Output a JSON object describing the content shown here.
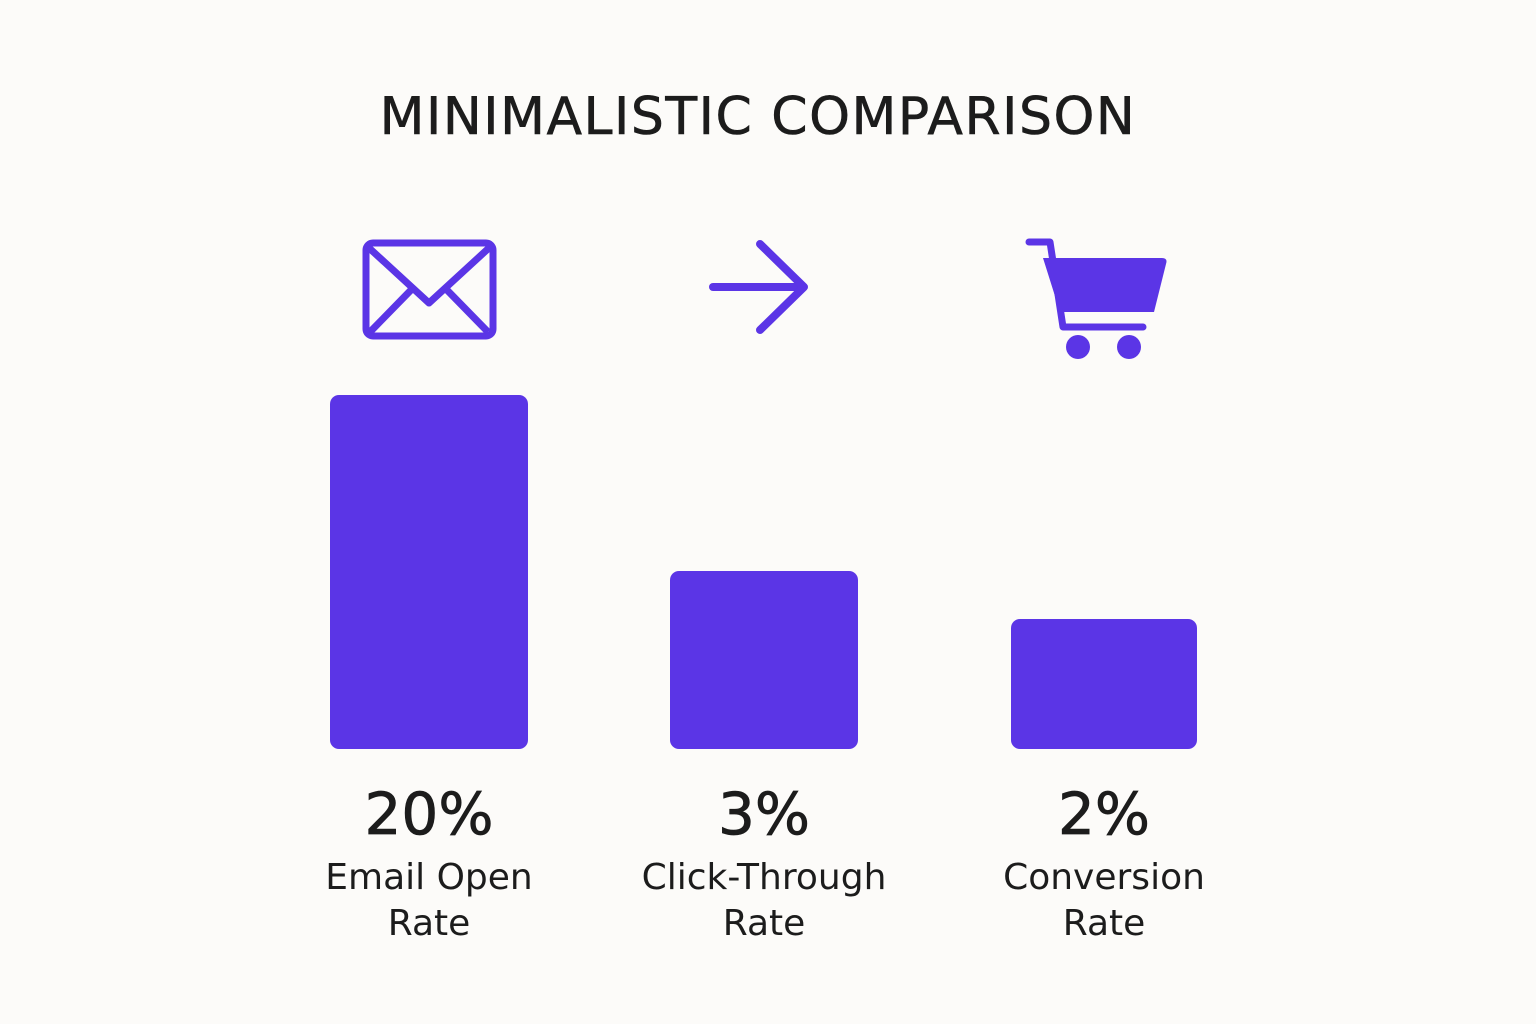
{
  "title": "MINIMALISTIC COMPARISON",
  "colors": {
    "bar": "#5b35e6",
    "icon": "#5b35e6",
    "text": "#1c1c1c",
    "background": "#fcfbf9"
  },
  "chart_data": {
    "type": "bar",
    "title": "MINIMALISTIC COMPARISON",
    "xlabel": "",
    "ylabel": "",
    "grid": false,
    "legend": "none",
    "categories": [
      "Email Open Rate",
      "Click-Through Rate",
      "Conversion Rate"
    ],
    "category_lines": [
      [
        "Email Open",
        "Rate"
      ],
      [
        "Click-Through",
        "Rate"
      ],
      [
        "Conversion",
        "Rate"
      ]
    ],
    "values": [
      20,
      3,
      2
    ],
    "value_labels": [
      "20%",
      "3%",
      "2%"
    ],
    "icons": [
      "envelope-icon",
      "arrow-right-icon",
      "shopping-cart-icon"
    ]
  }
}
